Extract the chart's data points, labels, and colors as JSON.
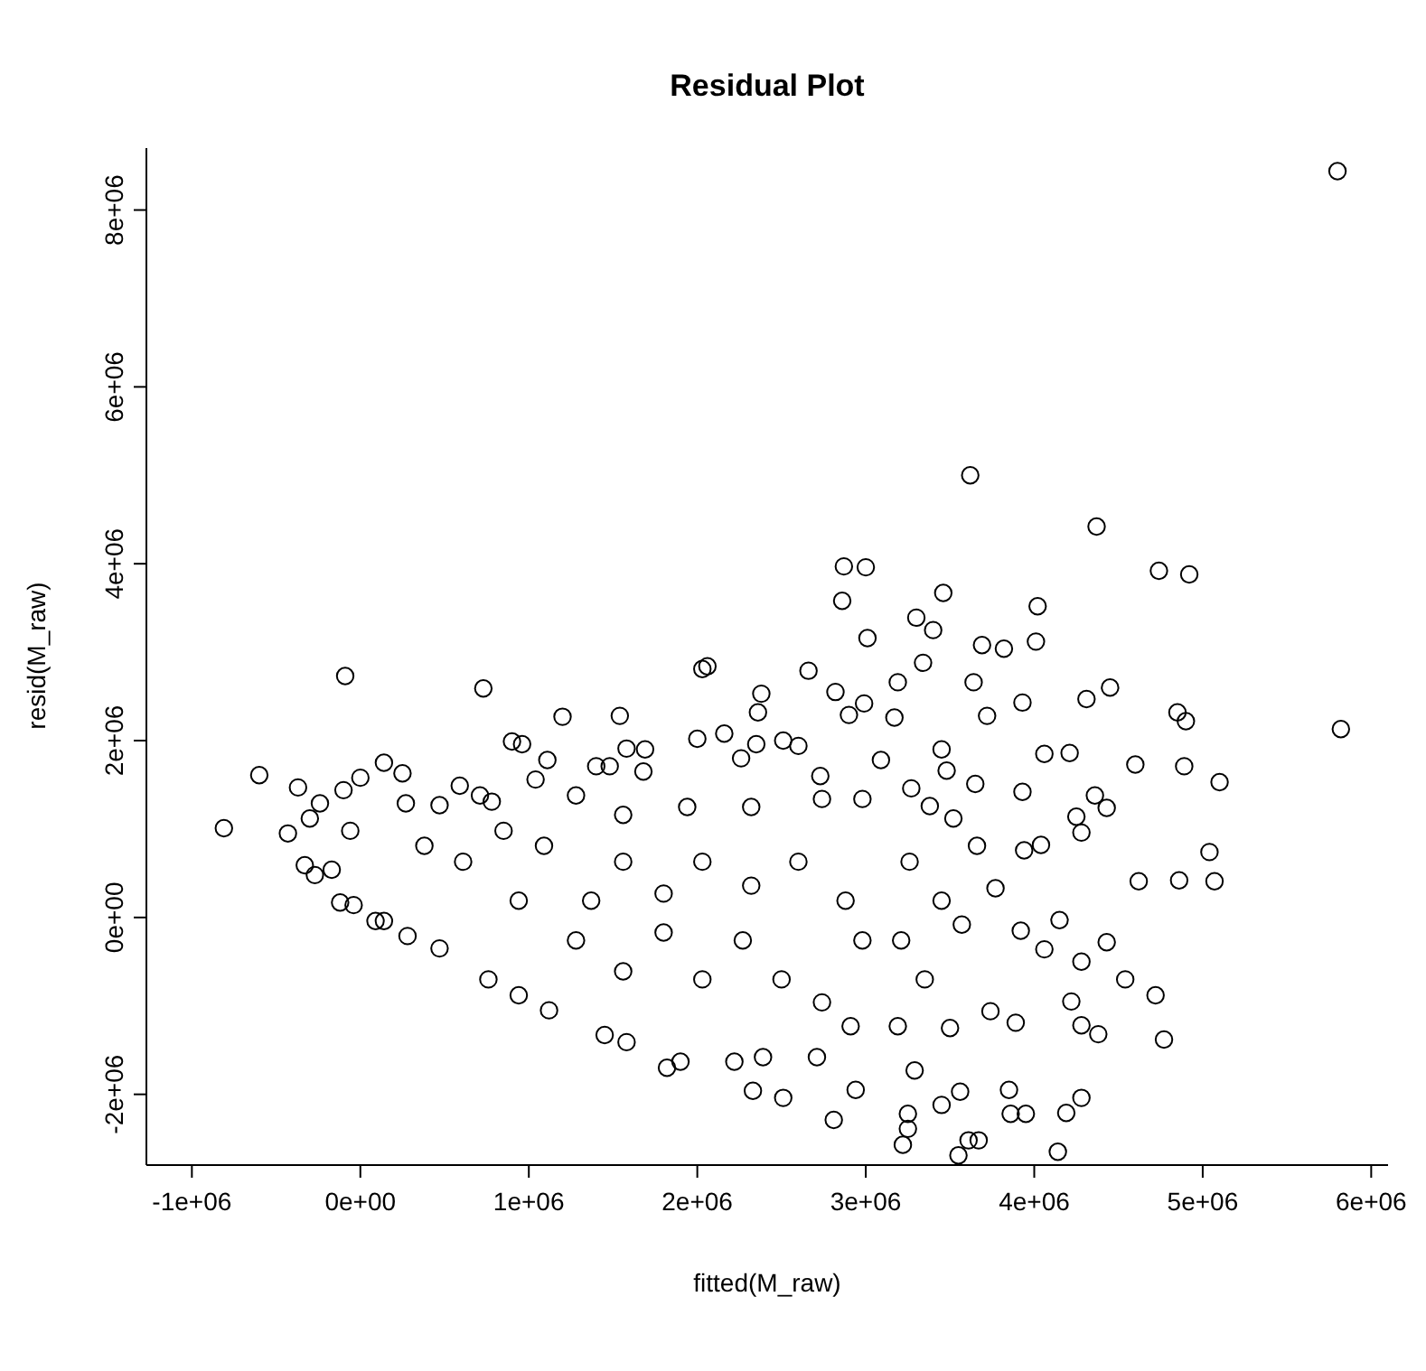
{
  "chart_data": {
    "type": "scatter",
    "title": "Residual Plot",
    "xlabel": "fitted(M_raw)",
    "ylabel": "resid(M_raw)",
    "color": "#000000",
    "marker": "circle",
    "xlim": [
      -1270000,
      6100000
    ],
    "ylim": [
      -2800000,
      8700000
    ],
    "xticks": [
      {
        "value": -1000000,
        "label": "-1e+06"
      },
      {
        "value": 0,
        "label": "0e+00"
      },
      {
        "value": 1000000,
        "label": "1e+06"
      },
      {
        "value": 2000000,
        "label": "2e+06"
      },
      {
        "value": 3000000,
        "label": "3e+06"
      },
      {
        "value": 4000000,
        "label": "4e+06"
      },
      {
        "value": 5000000,
        "label": "5e+06"
      },
      {
        "value": 6000000,
        "label": "6e+06"
      }
    ],
    "yticks": [
      {
        "value": -2000000,
        "label": "-2e+06"
      },
      {
        "value": 0,
        "label": "0e+00"
      },
      {
        "value": 2000000,
        "label": "2e+06"
      },
      {
        "value": 4000000,
        "label": "4e+06"
      },
      {
        "value": 6000000,
        "label": "6e+06"
      },
      {
        "value": 8000000,
        "label": "8e+06"
      }
    ],
    "x": [
      5800000.0,
      5820000.0,
      3620000.0,
      4370000.0,
      2870000.0,
      3000000.0,
      4740000.0,
      4920000.0,
      2860000.0,
      3460000.0,
      3300000.0,
      3400000.0,
      3010000.0,
      4020000.0,
      4010000.0,
      3340000.0,
      3690000.0,
      3820000.0,
      3640000.0,
      4450000.0,
      4310000.0,
      4850000.0,
      4900000.0,
      3930000.0,
      3720000.0,
      3190000.0,
      2660000.0,
      2030000.0,
      2060000.0,
      2380000.0,
      2360000.0,
      2820000.0,
      2900000.0,
      2990000.0,
      -90000.0,
      730000.0,
      1200000.0,
      1540000.0,
      -600000.0,
      -810000.0,
      -430000.0,
      -370000.0,
      -100000.0,
      0.0,
      -240000.0,
      -300000.0,
      140000.0,
      250000.0,
      270000.0,
      -330000.0,
      -170000.0,
      -270000.0,
      -120000.0,
      -40000.0,
      140000.0,
      -60000.0,
      470000.0,
      590000.0,
      710000.0,
      780000.0,
      900000.0,
      960000.0,
      1040000.0,
      1110000.0,
      1280000.0,
      1400000.0,
      1480000.0,
      1580000.0,
      1690000.0,
      1680000.0,
      2000000.0,
      2160000.0,
      2260000.0,
      2350000.0,
      2510000.0,
      2600000.0,
      2730000.0,
      3090000.0,
      3170000.0,
      3270000.0,
      3380000.0,
      3450000.0,
      3480000.0,
      3650000.0,
      3930000.0,
      4060000.0,
      4210000.0,
      4250000.0,
      4360000.0,
      4430000.0,
      4600000.0,
      4890000.0,
      5100000.0,
      5040000.0,
      5070000.0,
      4860000.0,
      4620000.0,
      4280000.0,
      4040000.0,
      3940000.0,
      3770000.0,
      3660000.0,
      4150000.0,
      4430000.0,
      4540000.0,
      4280000.0,
      4720000.0,
      4770000.0,
      4220000.0,
      4380000.0,
      4280000.0,
      4280000.0,
      4190000.0,
      4140000.0,
      3950000.0,
      3860000.0,
      3850000.0,
      3890000.0,
      3670000.0,
      3550000.0,
      3610000.0,
      3220000.0,
      3250000.0,
      3250000.0,
      2810000.0,
      3450000.0,
      3560000.0,
      2940000.0,
      2510000.0,
      2330000.0,
      3290000.0,
      3500000.0,
      3740000.0,
      4060000.0,
      3920000.0,
      3570000.0,
      3190000.0,
      2910000.0,
      2710000.0,
      2390000.0,
      2220000.0,
      1900000.0,
      1820000.0,
      1580000.0,
      1450000.0,
      1120000.0,
      940000.0,
      760000.0,
      470000.0,
      280000.0,
      90000.0,
      1280000.0,
      1560000.0,
      1800000.0,
      2270000.0,
      2030000.0,
      2500000.0,
      2740000.0,
      2980000.0,
      3210000.0,
      2880000.0,
      2600000.0,
      2030000.0,
      1560000.0,
      1090000.0,
      850000.0,
      610000.0,
      380000.0,
      940000.0,
      1370000.0,
      1800000.0,
      2320000.0,
      3260000.0,
      3450000.0,
      3350000.0,
      1560000.0,
      1940000.0,
      2320000.0,
      2740000.0,
      2980000.0,
      3520000.0
    ],
    "values": [
      8440000.0,
      2130000.0,
      5000000.0,
      4420000.0,
      3970000.0,
      3960000.0,
      3920000.0,
      3880000.0,
      3580000.0,
      3670000.0,
      3390000.0,
      3250000.0,
      3160000.0,
      3520000.0,
      3120000.0,
      2880000.0,
      3080000.0,
      3040000.0,
      2660000.0,
      2600000.0,
      2470000.0,
      2320000.0,
      2220000.0,
      2430000.0,
      2280000.0,
      2660000.0,
      2790000.0,
      2810000.0,
      2840000.0,
      2530000.0,
      2320000.0,
      2550000.0,
      2290000.0,
      2420000.0,
      2730000.0,
      2590000.0,
      2270000.0,
      2280000.0,
      1610000.0,
      1010000.0,
      950000.0,
      1470000.0,
      1440000.0,
      1580000.0,
      1290000.0,
      1120000.0,
      1750000.0,
      1630000.0,
      1290000.0,
      590000.0,
      540000.0,
      480000.0,
      170000.0,
      140000.0,
      -40000.0,
      980000.0,
      1270000.0,
      1490000.0,
      1380000.0,
      1310000.0,
      1990000.0,
      1960000.0,
      1560000.0,
      1780000.0,
      1380000.0,
      1710000.0,
      1710000.0,
      1910000.0,
      1900000.0,
      1650000.0,
      2020000.0,
      2080000.0,
      1800000.0,
      1960000.0,
      2000000.0,
      1940000.0,
      1600000.0,
      1780000.0,
      2260000.0,
      1460000.0,
      1260000.0,
      1900000.0,
      1660000.0,
      1510000.0,
      1420000.0,
      1850000.0,
      1860000.0,
      1140000.0,
      1380000.0,
      1240000.0,
      1730000.0,
      1710000.0,
      1530000.0,
      740000.0,
      410000.0,
      420000.0,
      410000.0,
      960000.0,
      820000.0,
      760000.0,
      330000.0,
      810000.0,
      -30000.0,
      -280000.0,
      -700000.0,
      -500000.0,
      -880000.0,
      -1380000.0,
      -950000.0,
      -1320000.0,
      -1220000.0,
      -2040000.0,
      -2210000.0,
      -2650000.0,
      -2220000.0,
      -2220000.0,
      -1950000.0,
      -1190000.0,
      -2520000.0,
      -2690000.0,
      -2520000.0,
      -2570000.0,
      -2390000.0,
      -2220000.0,
      -2290000.0,
      -2120000.0,
      -1970000.0,
      -1950000.0,
      -2040000.0,
      -1960000.0,
      -1730000.0,
      -1250000.0,
      -1060000.0,
      -360000.0,
      -150000.0,
      -80000.0,
      -1230000.0,
      -1230000.0,
      -1580000.0,
      -1580000.0,
      -1630000.0,
      -1630000.0,
      -1700000.0,
      -1410000.0,
      -1330000.0,
      -1050000.0,
      -880000.0,
      -700000.0,
      -350000.0,
      -210000.0,
      -40000.0,
      -260000.0,
      -610000.0,
      -170000.0,
      -260000.0,
      -700000.0,
      -700000.0,
      -960000.0,
      -260000.0,
      -260000.0,
      190000.0,
      630000.0,
      630000.0,
      630000.0,
      810000.0,
      980000.0,
      630000.0,
      810000.0,
      190000.0,
      190000.0,
      270000.0,
      360000.0,
      630000.0,
      190000.0,
      -700000.0,
      1160000.0,
      1250000.0,
      1250000.0,
      1340000.0,
      1340000.0,
      1120000.0
    ]
  }
}
